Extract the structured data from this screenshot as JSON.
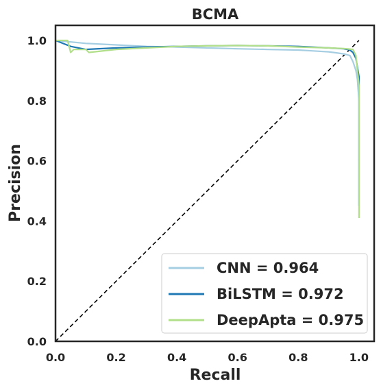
{
  "chart_data": {
    "type": "line",
    "title": "BCMA",
    "xlabel": "Recall",
    "ylabel": "Precision",
    "xlim": [
      0,
      1.05
    ],
    "ylim": [
      0,
      1.05
    ],
    "xticks": [
      "0.0",
      "0.2",
      "0.4",
      "0.6",
      "0.8",
      "1.0"
    ],
    "yticks": [
      "0.0",
      "0.2",
      "0.4",
      "0.6",
      "0.8",
      "1.0"
    ],
    "grid": false,
    "legend": "lower-right",
    "diagonal": {
      "x": [
        0,
        1
      ],
      "y": [
        0,
        1
      ],
      "style": "dashed",
      "color": "#000000"
    },
    "series": [
      {
        "name": "CNN = 0.964",
        "color": "#a6cee3",
        "x": [
          0.0,
          0.1,
          0.2,
          0.3,
          0.4,
          0.5,
          0.6,
          0.7,
          0.8,
          0.85,
          0.9,
          0.93,
          0.95,
          0.97,
          0.98,
          0.99,
          0.995,
          1.0,
          1.0
        ],
        "y": [
          1.0,
          0.99,
          0.985,
          0.98,
          0.978,
          0.975,
          0.972,
          0.97,
          0.968,
          0.965,
          0.962,
          0.958,
          0.955,
          0.95,
          0.93,
          0.9,
          0.87,
          0.8,
          0.6
        ]
      },
      {
        "name": "BiLSTM = 0.972",
        "color": "#1f78b4",
        "x": [
          0.0,
          0.05,
          0.1,
          0.2,
          0.3,
          0.4,
          0.5,
          0.6,
          0.7,
          0.8,
          0.9,
          0.95,
          0.97,
          0.98,
          0.99,
          1.0,
          1.0,
          1.0
        ],
        "y": [
          1.0,
          0.98,
          0.97,
          0.975,
          0.978,
          0.98,
          0.982,
          0.983,
          0.982,
          0.98,
          0.975,
          0.972,
          0.968,
          0.96,
          0.94,
          0.88,
          0.7,
          0.45
        ]
      },
      {
        "name": "DeepApta = 0.975",
        "color": "#b2df8a",
        "x": [
          0.0,
          0.04,
          0.05,
          0.06,
          0.1,
          0.11,
          0.2,
          0.3,
          0.4,
          0.5,
          0.6,
          0.7,
          0.8,
          0.9,
          0.95,
          0.98,
          0.99,
          1.0,
          1.0,
          1.0
        ],
        "y": [
          1.0,
          1.0,
          0.96,
          0.97,
          0.97,
          0.96,
          0.97,
          0.975,
          0.98,
          0.982,
          0.983,
          0.982,
          0.978,
          0.975,
          0.973,
          0.97,
          0.95,
          0.85,
          0.65,
          0.41
        ]
      }
    ]
  }
}
